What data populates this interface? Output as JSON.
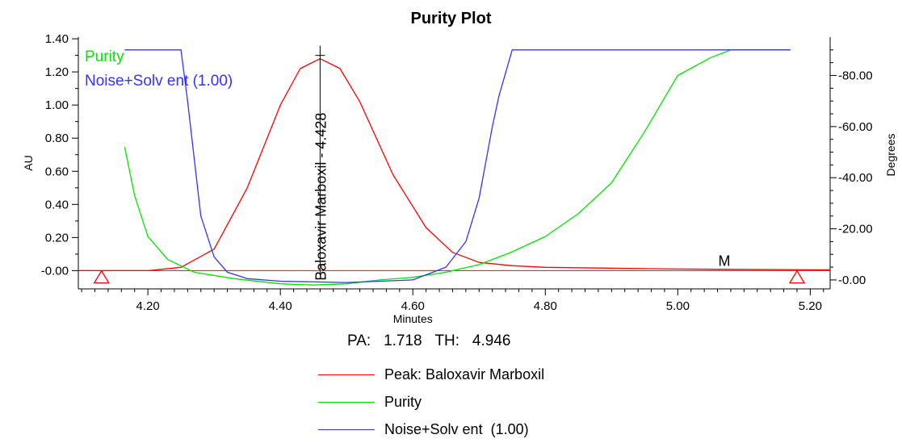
{
  "chart_data": {
    "type": "line",
    "title": "Purity Plot",
    "xlabel": "Minutes",
    "ylabel": "AU",
    "y2label": "Degrees",
    "xlim": [
      4.095,
      5.23
    ],
    "ylim": [
      -0.11,
      1.41
    ],
    "y2lim": [
      -3.5,
      95
    ],
    "x_ticks": [
      "4.20",
      "4.40",
      "4.60",
      "4.80",
      "5.00",
      "5.20"
    ],
    "y_ticks": [
      "-0.00",
      "0.20",
      "0.40",
      "0.60",
      "0.80",
      "1.00",
      "1.20",
      "1.40"
    ],
    "y2_ticks": [
      "-0.00",
      "-20.00",
      "-40.00",
      "-60.00",
      "-80.00"
    ],
    "grid": false,
    "legend_position": "bottom",
    "inset_legend_position": "top-left",
    "peak_label": "Baloxavir Marboxil - 4.428",
    "peak_time": 4.46,
    "marker_label": "M",
    "marker_x": 5.08,
    "start_marker_x": 4.13,
    "end_marker_x": 5.18,
    "series": [
      {
        "name": "Peak: Baloxavir Marboxil",
        "axis": "AU",
        "color": "#ff0000",
        "x": [
          4.095,
          4.2,
          4.25,
          4.3,
          4.35,
          4.4,
          4.43,
          4.46,
          4.49,
          4.52,
          4.57,
          4.62,
          4.66,
          4.7,
          4.75,
          4.8,
          5.0,
          5.23
        ],
        "y": [
          0.0,
          0.0,
          0.02,
          0.13,
          0.5,
          1.0,
          1.22,
          1.28,
          1.22,
          1.02,
          0.58,
          0.26,
          0.11,
          0.05,
          0.03,
          0.02,
          0.01,
          0.005
        ]
      },
      {
        "name": "Purity",
        "axis": "Degrees",
        "color": "#00e600",
        "x": [
          4.165,
          4.18,
          4.2,
          4.23,
          4.27,
          4.33,
          4.4,
          4.45,
          4.5,
          4.55,
          4.6,
          4.65,
          4.7,
          4.75,
          4.8,
          4.85,
          4.9,
          4.95,
          5.0,
          5.05,
          5.08,
          5.17
        ],
        "y": [
          52,
          33,
          17,
          8,
          3,
          0.5,
          -1.5,
          -2,
          -1.5,
          0,
          1,
          3,
          6,
          11,
          17,
          26,
          38,
          58,
          80,
          87,
          90,
          90
        ]
      },
      {
        "name": "Noise+Solv ent  (1.00)",
        "axis": "Degrees",
        "color": "#3333ff",
        "x": [
          4.165,
          4.25,
          4.26,
          4.28,
          4.3,
          4.32,
          4.35,
          4.4,
          4.5,
          4.6,
          4.65,
          4.68,
          4.7,
          4.72,
          4.73,
          4.75,
          5.17
        ],
        "y": [
          90,
          90,
          70,
          25,
          9,
          3,
          0.5,
          -0.5,
          -1,
          0,
          5,
          15,
          32,
          60,
          72,
          90,
          90
        ]
      }
    ]
  },
  "stats": {
    "pa_label": "PA:",
    "pa_value": "1.718",
    "th_label": "TH:",
    "th_value": "4.946"
  },
  "legend": [
    {
      "label": "Peak: Baloxavir Marboxil",
      "color": "#ff0000"
    },
    {
      "label": "Purity",
      "color": "#00e600"
    },
    {
      "label": "Noise+Solv ent  (1.00)",
      "color": "#3333ff"
    }
  ],
  "inset_legend": [
    {
      "label": "Purity",
      "color": "#00e600"
    },
    {
      "label": "Noise+Solv ent  (1.00)",
      "color": "#3333ff"
    }
  ]
}
